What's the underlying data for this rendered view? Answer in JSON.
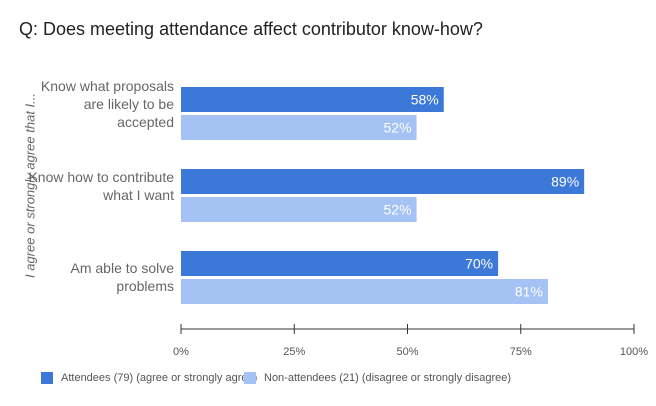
{
  "chart_data": {
    "type": "bar",
    "orientation": "horizontal",
    "title": "Q: Does meeting attendance affect contributor know-how?",
    "ylabel": "I agree or strongly agree that I...",
    "xlabel": "",
    "categories": [
      "Know what proposals are likely to be accepted",
      "Know how to contribute what I want",
      "Am able to solve problems"
    ],
    "series": [
      {
        "name": "Attendees (79) (agree or strongly agree)",
        "color": "#3c78d8",
        "values": [
          58,
          89,
          70
        ],
        "labels": [
          "58%",
          "89%",
          "70%"
        ]
      },
      {
        "name": "Non-attendees (21) (disagree or strongly disagree)",
        "color": "#a4c2f4",
        "values": [
          52,
          52,
          81
        ],
        "labels": [
          "52%",
          "52%",
          "81%"
        ]
      }
    ],
    "xlim": [
      0,
      100
    ],
    "xticks": [
      "0%",
      "25%",
      "50%",
      "75%",
      "100%"
    ],
    "grid": false,
    "legend_position": "bottom"
  }
}
